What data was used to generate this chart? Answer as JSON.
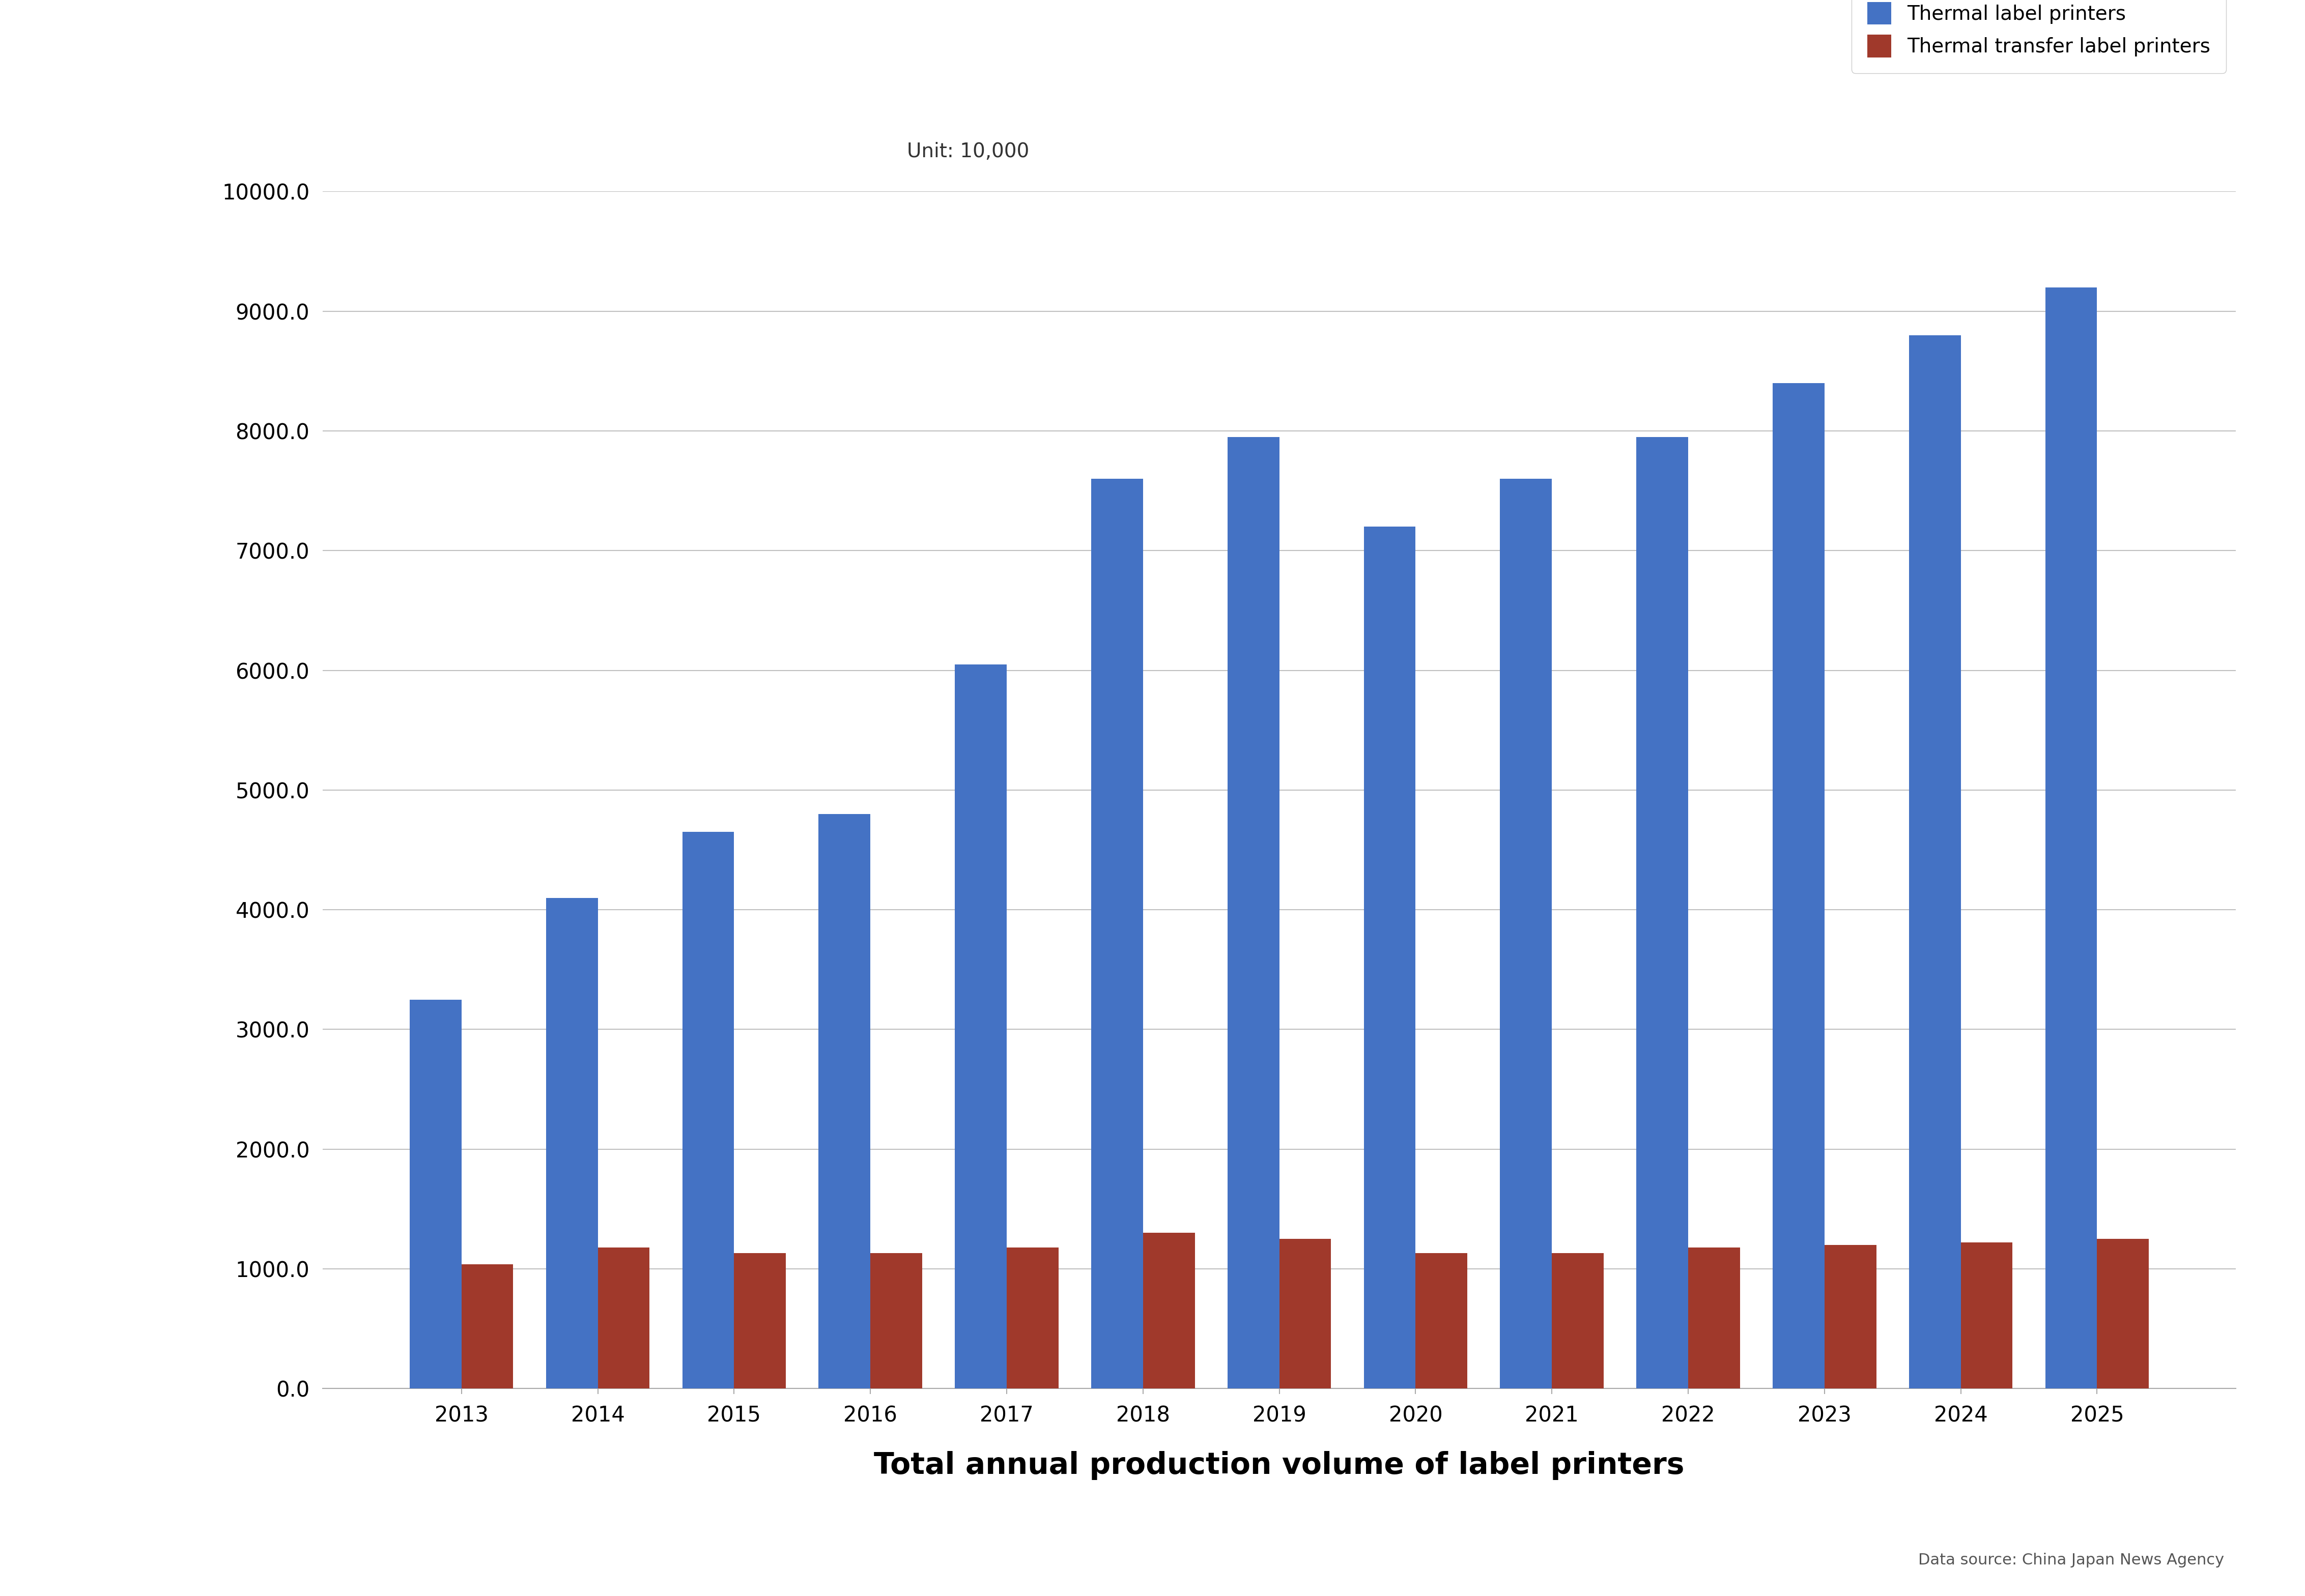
{
  "years": [
    "2013",
    "2014",
    "2015",
    "2016",
    "2017",
    "2018",
    "2019",
    "2020",
    "2021",
    "2022",
    "2023",
    "2024",
    "2025"
  ],
  "thermal_label": [
    3250,
    4100,
    4650,
    4800,
    6050,
    7600,
    7950,
    7200,
    7600,
    7950,
    8400,
    8800,
    9200
  ],
  "thermal_transfer": [
    1040,
    1180,
    1130,
    1130,
    1180,
    1300,
    1250,
    1130,
    1130,
    1180,
    1200,
    1220,
    1250
  ],
  "blue_color": "#4472C4",
  "red_color": "#A0392B",
  "title": "Total annual production volume of label printers",
  "unit_text": "Unit: 10,000",
  "legend_thermal": "Thermal label printers",
  "legend_transfer": "Thermal transfer label printers",
  "datasource": "Data source: China Japan News Agency",
  "ylim": [
    0,
    10000
  ],
  "yticks": [
    0.0,
    1000.0,
    2000.0,
    3000.0,
    4000.0,
    5000.0,
    6000.0,
    7000.0,
    8000.0,
    9000.0,
    10000.0
  ],
  "background_color": "#ffffff",
  "grid_color": "#c0c0c0",
  "bar_width": 0.38,
  "tick_fontsize": 30,
  "title_fontsize": 42,
  "legend_fontsize": 28,
  "unit_fontsize": 28,
  "datasource_fontsize": 22
}
